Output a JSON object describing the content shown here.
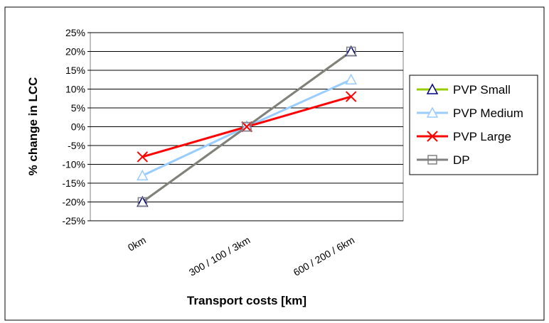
{
  "chart_data": {
    "type": "line",
    "categories": [
      "0km",
      "300 / 100 / 3km",
      "600 / 200 / 6km"
    ],
    "series": [
      {
        "name": "PVP Small",
        "values": [
          -20,
          0,
          20
        ],
        "color": "#99CC00",
        "marker": "triangle",
        "marker_color": "#000080"
      },
      {
        "name": "PVP Medium",
        "values": [
          -13,
          0,
          12.5
        ],
        "color": "#99CCFF",
        "marker": "triangle",
        "marker_color": "#99CCFF"
      },
      {
        "name": "PVP Large",
        "values": [
          -8,
          0,
          8
        ],
        "color": "#FF0000",
        "marker": "x",
        "marker_color": "#FF0000"
      },
      {
        "name": "DP",
        "values": [
          -20,
          0,
          20
        ],
        "color": "#808080",
        "marker": "square",
        "marker_color": "#808080"
      }
    ],
    "yticks": [
      "-25%",
      "-20%",
      "-15%",
      "-10%",
      "-5%",
      "0%",
      "5%",
      "10%",
      "15%",
      "20%",
      "25%"
    ],
    "ylim": [
      -25,
      25
    ],
    "xlabel": "Transport costs [km]",
    "ylabel": "% change in LCC",
    "grid": true,
    "legend": "right"
  }
}
